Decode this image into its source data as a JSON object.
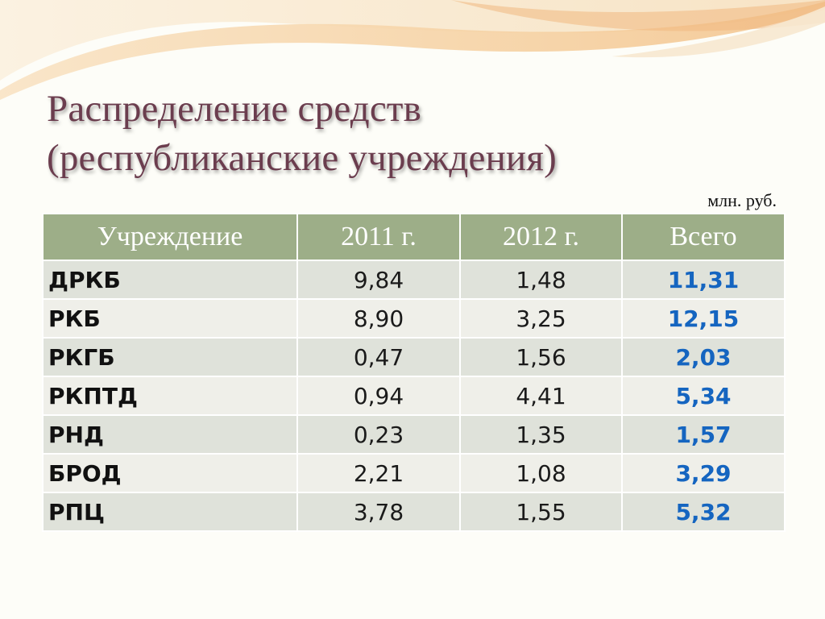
{
  "title": {
    "line1": "Распределение средств",
    "line2": "(республиканские учреждения)"
  },
  "units": "млн. руб.",
  "colors": {
    "title": "#6b3d4e",
    "header_bg": "#9dae88",
    "row_dark": "#dfe2da",
    "row_light": "#efefe9",
    "total_text": "#1565c0"
  },
  "table": {
    "headers": [
      "Учреждение",
      "2011 г.",
      "2012 г.",
      "Всего"
    ],
    "rows": [
      {
        "name": "ДРКБ",
        "y2011": "9,84",
        "y2012": "1,48",
        "total": "11,31"
      },
      {
        "name": "РКБ",
        "y2011": "8,90",
        "y2012": "3,25",
        "total": "12,15"
      },
      {
        "name": "РКГБ",
        "y2011": "0,47",
        "y2012": "1,56",
        "total": "2,03"
      },
      {
        "name": "РКПТД",
        "y2011": "0,94",
        "y2012": "4,41",
        "total": "5,34"
      },
      {
        "name": "РНД",
        "y2011": "0,23",
        "y2012": "1,35",
        "total": "1,57"
      },
      {
        "name": "БРОД",
        "y2011": "2,21",
        "y2012": "1,08",
        "total": "3,29"
      },
      {
        "name": "РПЦ",
        "y2011": "3,78",
        "y2012": "1,55",
        "total": "5,32"
      }
    ]
  }
}
